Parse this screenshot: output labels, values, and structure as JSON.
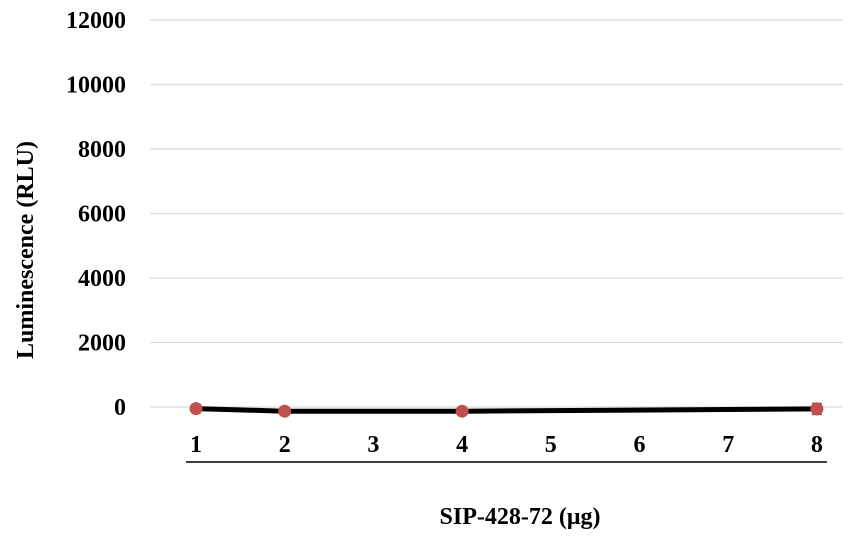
{
  "chart_data": {
    "type": "line",
    "xlabel": "SIP-428-72 (μg)",
    "ylabel": "Luminescence (RLU)",
    "ylim": [
      0,
      12000
    ],
    "y_ticks": [
      "0",
      "2000",
      "4000",
      "6000",
      "8000",
      "10000",
      "12000"
    ],
    "categories": [
      "1",
      "2",
      "3",
      "4",
      "5",
      "6",
      "7",
      "8"
    ],
    "grid": true,
    "legend": "none",
    "series": [
      {
        "x": [
          "1",
          "2",
          "4",
          "8"
        ],
        "values": [
          -50,
          -130,
          -130,
          -60
        ],
        "error": [
          120,
          40,
          40,
          170
        ],
        "line_color": "#000000",
        "marker_color": "#c0504d"
      }
    ]
  }
}
